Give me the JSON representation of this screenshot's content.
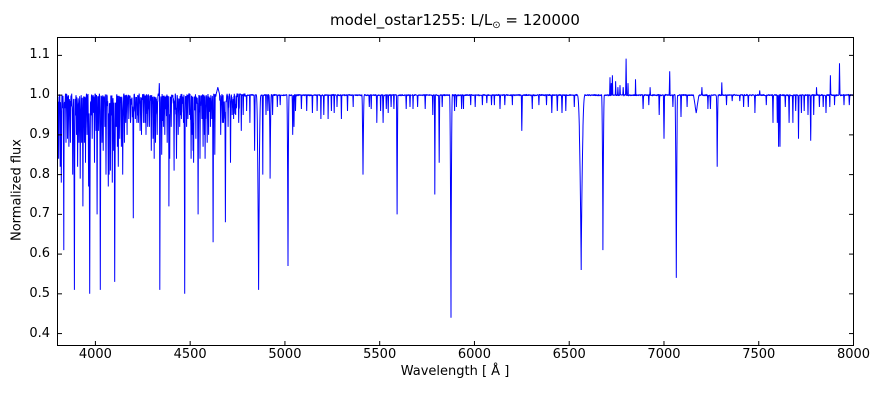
{
  "figure": {
    "title_prefix": "model_ostar1255: L/L",
    "title_sub": "⊙",
    "title_suffix": " = 120000",
    "xlabel": "Wavelength [ Å ]",
    "ylabel": "Normalized flux",
    "line_color": "#0000ff",
    "frame_color": "#000000",
    "background": "#ffffff"
  },
  "chart_data": {
    "type": "line",
    "title": "model_ostar1255: L/L⊙ = 120000",
    "xlabel": "Wavelength [ Å ]",
    "ylabel": "Normalized flux",
    "xlim": [
      3800,
      8000
    ],
    "ylim": [
      0.37,
      1.145
    ],
    "xticks": [
      4000,
      4500,
      5000,
      5500,
      6000,
      6500,
      7000,
      7500,
      8000
    ],
    "yticks": [
      0.4,
      0.5,
      0.6,
      0.7,
      0.8,
      0.9,
      1.0,
      1.1
    ],
    "grid": false,
    "legend": null,
    "continuum": 1.0,
    "line_color": "#0000ff",
    "absorption_lines": [
      [
        3806,
        0.84,
        2
      ],
      [
        3814,
        0.82,
        2
      ],
      [
        3820,
        0.78,
        2.5
      ],
      [
        3833,
        0.61,
        3.5,
        1.5
      ],
      [
        3845,
        0.88,
        2
      ],
      [
        3853,
        0.89,
        2
      ],
      [
        3860,
        0.87,
        2
      ],
      [
        3868,
        0.88,
        2
      ],
      [
        3880,
        0.8,
        2
      ],
      [
        3889,
        0.51,
        4.5,
        1.8
      ],
      [
        3900,
        0.9,
        2
      ],
      [
        3906,
        0.82,
        2
      ],
      [
        3913,
        0.88,
        2
      ],
      [
        3920,
        0.79,
        2.5
      ],
      [
        3927,
        0.88,
        2
      ],
      [
        3934,
        0.72,
        2.5
      ],
      [
        3942,
        0.88,
        2
      ],
      [
        3948,
        0.83,
        2
      ],
      [
        3956,
        0.9,
        2
      ],
      [
        3964,
        0.77,
        2.5
      ],
      [
        3970,
        0.5,
        5,
        2
      ],
      [
        3983,
        0.89,
        2
      ],
      [
        3995,
        0.83,
        2.5
      ],
      [
        4003,
        0.91,
        2
      ],
      [
        4009,
        0.7,
        2.5
      ],
      [
        4017,
        0.91,
        2
      ],
      [
        4026,
        0.51,
        4,
        1.8
      ],
      [
        4035,
        0.88,
        2
      ],
      [
        4041,
        0.86,
        2
      ],
      [
        4050,
        0.92,
        2
      ],
      [
        4056,
        0.8,
        2.5
      ],
      [
        4068,
        0.77,
        2.5
      ],
      [
        4072,
        0.8,
        2
      ],
      [
        4079,
        0.81,
        2
      ],
      [
        4089,
        0.78,
        2
      ],
      [
        4096,
        0.86,
        2
      ],
      [
        4102,
        0.53,
        5,
        2
      ],
      [
        4110,
        0.92,
        2
      ],
      [
        4116,
        0.87,
        2
      ],
      [
        4121,
        0.82,
        2.5
      ],
      [
        4128,
        0.89,
        2
      ],
      [
        4137,
        0.87,
        2
      ],
      [
        4144,
        0.8,
        2.5
      ],
      [
        4153,
        0.88,
        2
      ],
      [
        4160,
        0.93,
        2
      ],
      [
        4167,
        0.9,
        2
      ],
      [
        4176,
        0.94,
        2
      ],
      [
        4185,
        0.93,
        2
      ],
      [
        4200,
        0.69,
        3,
        1.6
      ],
      [
        4211,
        0.94,
        2
      ],
      [
        4219,
        0.93,
        2
      ],
      [
        4227,
        0.93,
        2
      ],
      [
        4236,
        0.91,
        2
      ],
      [
        4243,
        0.9,
        2
      ],
      [
        4253,
        0.93,
        2
      ],
      [
        4261,
        0.93,
        2
      ],
      [
        4267,
        0.9,
        2
      ],
      [
        4276,
        0.92,
        2
      ],
      [
        4285,
        0.92,
        2
      ],
      [
        4295,
        0.86,
        2
      ],
      [
        4304,
        0.89,
        2
      ],
      [
        4310,
        0.84,
        2
      ],
      [
        4317,
        0.88,
        2
      ],
      [
        4326,
        0.9,
        2
      ],
      [
        4340,
        0.51,
        5,
        2
      ],
      [
        4350,
        0.85,
        2
      ],
      [
        4359,
        0.92,
        2
      ],
      [
        4366,
        0.9,
        2
      ],
      [
        4379,
        0.88,
        2
      ],
      [
        4388,
        0.72,
        3,
        1.6
      ],
      [
        4392,
        0.84,
        2
      ],
      [
        4400,
        0.92,
        2
      ],
      [
        4415,
        0.81,
        2.5
      ],
      [
        4428,
        0.84,
        2.5
      ],
      [
        4437,
        0.9,
        2
      ],
      [
        4445,
        0.92,
        2
      ],
      [
        4454,
        0.94,
        2
      ],
      [
        4465,
        0.93,
        2
      ],
      [
        4471,
        0.5,
        4,
        1.8
      ],
      [
        4481,
        0.92,
        2
      ],
      [
        4488,
        0.94,
        2
      ],
      [
        4497,
        0.95,
        2
      ],
      [
        4505,
        0.84,
        2
      ],
      [
        4511,
        0.9,
        2
      ],
      [
        4515,
        0.86,
        2
      ],
      [
        4518,
        0.83,
        2
      ],
      [
        4530,
        0.89,
        2
      ],
      [
        4542,
        0.7,
        3.5,
        1.6
      ],
      [
        4552,
        0.84,
        2
      ],
      [
        4562,
        0.94,
        2
      ],
      [
        4568,
        0.87,
        2
      ],
      [
        4575,
        0.9,
        2
      ],
      [
        4579,
        0.84,
        2
      ],
      [
        4590,
        0.88,
        2
      ],
      [
        4597,
        0.9,
        2
      ],
      [
        4607,
        0.92,
        2
      ],
      [
        4614,
        0.94,
        2
      ],
      [
        4621,
        0.63,
        2.5
      ],
      [
        4630,
        0.85,
        2
      ],
      [
        4638,
        0.86,
        2
      ],
      [
        4650,
        0.88,
        2
      ],
      [
        4661,
        0.9,
        2
      ],
      [
        4670,
        0.93,
        2
      ],
      [
        4676,
        0.93,
        2
      ],
      [
        4686,
        0.68,
        3.5,
        1.6
      ],
      [
        4700,
        0.92,
        2
      ],
      [
        4713,
        0.83,
        2.5
      ],
      [
        4722,
        0.95,
        2
      ],
      [
        4729,
        0.94,
        2
      ],
      [
        4740,
        0.95,
        2
      ],
      [
        4756,
        0.93,
        2
      ],
      [
        4770,
        0.91,
        2
      ],
      [
        4780,
        0.95,
        2
      ],
      [
        4798,
        0.96,
        2
      ],
      [
        4815,
        0.93,
        2
      ],
      [
        4840,
        0.86,
        2.5
      ],
      [
        4861,
        0.51,
        12,
        2.3
      ],
      [
        4883,
        0.8,
        2.5
      ],
      [
        4900,
        0.95,
        2
      ],
      [
        4910,
        0.96,
        2
      ],
      [
        4922,
        0.79,
        6,
        2
      ],
      [
        4935,
        0.95,
        2
      ],
      [
        4960,
        0.97,
        2
      ],
      [
        4975,
        0.975,
        2
      ],
      [
        5016,
        0.57,
        6,
        2
      ],
      [
        5041,
        0.9,
        2.5
      ],
      [
        5048,
        0.92,
        2
      ],
      [
        5056,
        0.96,
        2
      ],
      [
        5087,
        0.965,
        2
      ],
      [
        5115,
        0.96,
        2
      ],
      [
        5145,
        0.955,
        2
      ],
      [
        5170,
        0.96,
        2
      ],
      [
        5190,
        0.94,
        2
      ],
      [
        5205,
        0.95,
        2
      ],
      [
        5228,
        0.94,
        2
      ],
      [
        5245,
        0.96,
        2
      ],
      [
        5260,
        0.955,
        2
      ],
      [
        5275,
        0.97,
        2
      ],
      [
        5298,
        0.94,
        2
      ],
      [
        5330,
        0.96,
        2
      ],
      [
        5360,
        0.97,
        2
      ],
      [
        5412,
        0.8,
        6,
        1.8
      ],
      [
        5445,
        0.97,
        2
      ],
      [
        5455,
        0.965,
        2
      ],
      [
        5485,
        0.93,
        2.5
      ],
      [
        5505,
        0.96,
        2
      ],
      [
        5518,
        0.93,
        2.5
      ],
      [
        5535,
        0.965,
        2
      ],
      [
        5545,
        0.955,
        2
      ],
      [
        5560,
        0.97,
        2
      ],
      [
        5575,
        0.965,
        2
      ],
      [
        5592,
        0.7,
        4,
        1.5
      ],
      [
        5640,
        0.965,
        2
      ],
      [
        5660,
        0.97,
        2
      ],
      [
        5676,
        0.965,
        2
      ],
      [
        5700,
        0.97,
        2
      ],
      [
        5740,
        0.965,
        2
      ],
      [
        5780,
        0.95,
        2
      ],
      [
        5791,
        0.75,
        3,
        1.4
      ],
      [
        5814,
        0.83,
        2.5
      ],
      [
        5830,
        0.97,
        2
      ],
      [
        5876,
        0.44,
        7,
        2
      ],
      [
        5895,
        0.96,
        2
      ],
      [
        5905,
        0.97,
        2
      ],
      [
        5932,
        0.965,
        2
      ],
      [
        5942,
        0.965,
        2
      ],
      [
        5980,
        0.975,
        2
      ],
      [
        6004,
        0.97,
        2
      ],
      [
        6042,
        0.975,
        2
      ],
      [
        6065,
        0.98,
        2
      ],
      [
        6090,
        0.975,
        2
      ],
      [
        6105,
        0.975,
        2
      ],
      [
        6135,
        0.965,
        2.5
      ],
      [
        6160,
        0.975,
        2
      ],
      [
        6200,
        0.975,
        2
      ],
      [
        6250,
        0.91,
        3
      ],
      [
        6305,
        0.965,
        2.5
      ],
      [
        6340,
        0.975,
        2
      ],
      [
        6380,
        0.975,
        2
      ],
      [
        6408,
        0.955,
        2.5
      ],
      [
        6437,
        0.96,
        2.5
      ],
      [
        6462,
        0.955,
        2.5
      ],
      [
        6482,
        0.96,
        2
      ],
      [
        6527,
        0.97,
        2
      ],
      [
        6563,
        0.56,
        20,
        2.5
      ],
      [
        6678,
        0.61,
        7,
        2
      ],
      [
        6890,
        0.965,
        2.5
      ],
      [
        6920,
        0.975,
        2
      ],
      [
        6975,
        0.95,
        2.5
      ],
      [
        7000,
        0.89,
        3
      ],
      [
        7047,
        0.97,
        2
      ],
      [
        7065,
        0.54,
        7,
        2
      ],
      [
        7090,
        0.945,
        2.5
      ],
      [
        7122,
        0.97,
        2
      ],
      [
        7170,
        0.955,
        14
      ],
      [
        7232,
        0.965,
        2.5
      ],
      [
        7245,
        0.965,
        2.5
      ],
      [
        7281,
        0.82,
        5,
        1.8
      ],
      [
        7330,
        0.975,
        2
      ],
      [
        7360,
        0.985,
        2
      ],
      [
        7400,
        0.985,
        2
      ],
      [
        7420,
        0.97,
        2
      ],
      [
        7445,
        0.97,
        2
      ],
      [
        7480,
        0.955,
        2.5
      ],
      [
        7540,
        0.975,
        2
      ],
      [
        7575,
        0.93,
        2.5
      ],
      [
        7598,
        0.93,
        2
      ],
      [
        7605,
        0.87,
        2.5
      ],
      [
        7612,
        0.87,
        2
      ],
      [
        7640,
        0.97,
        2
      ],
      [
        7660,
        0.93,
        2.5
      ],
      [
        7680,
        0.93,
        2.5
      ],
      [
        7695,
        0.96,
        2
      ],
      [
        7710,
        0.89,
        2.5
      ],
      [
        7725,
        0.955,
        2
      ],
      [
        7740,
        0.96,
        2
      ],
      [
        7760,
        0.95,
        2
      ],
      [
        7774,
        0.885,
        3
      ],
      [
        7790,
        0.95,
        2
      ],
      [
        7820,
        0.97,
        2
      ],
      [
        7840,
        0.97,
        2
      ],
      [
        7855,
        0.955,
        2.5
      ],
      [
        7875,
        0.97,
        2
      ],
      [
        7900,
        0.975,
        2
      ],
      [
        7950,
        0.975,
        2
      ],
      [
        7978,
        0.975,
        2.5
      ]
    ],
    "emission_lines": [
      [
        4337,
        1.03,
        2
      ],
      [
        4646,
        1.02,
        10
      ],
      [
        6715,
        1.045,
        2
      ],
      [
        6722,
        1.03,
        2
      ],
      [
        6728,
        1.05,
        2
      ],
      [
        6745,
        1.035,
        2
      ],
      [
        6757,
        1.02,
        2
      ],
      [
        6768,
        1.025,
        2
      ],
      [
        6785,
        1.02,
        2
      ],
      [
        6800,
        1.092,
        2.5
      ],
      [
        6810,
        1.03,
        2
      ],
      [
        6850,
        1.04,
        2
      ],
      [
        6927,
        1.02,
        2
      ],
      [
        7030,
        1.06,
        2.5
      ],
      [
        7200,
        1.02,
        2
      ],
      [
        7305,
        1.032,
        2
      ],
      [
        7505,
        1.012,
        2
      ],
      [
        7805,
        1.02,
        2
      ],
      [
        7878,
        1.05,
        2
      ],
      [
        7926,
        1.08,
        2.5
      ]
    ],
    "weak_forest": {
      "start": 3802,
      "end": 4760,
      "min_depth": 0.93,
      "max_depth": 0.995,
      "min_gap": 3,
      "max_gap": 9,
      "seed": 7,
      "note": "dense weak metal-line forest in blue region"
    },
    "noise": {
      "blue_amp": 0.004,
      "red_amp": 0.002,
      "boundary": 4800,
      "seed": 99
    }
  }
}
